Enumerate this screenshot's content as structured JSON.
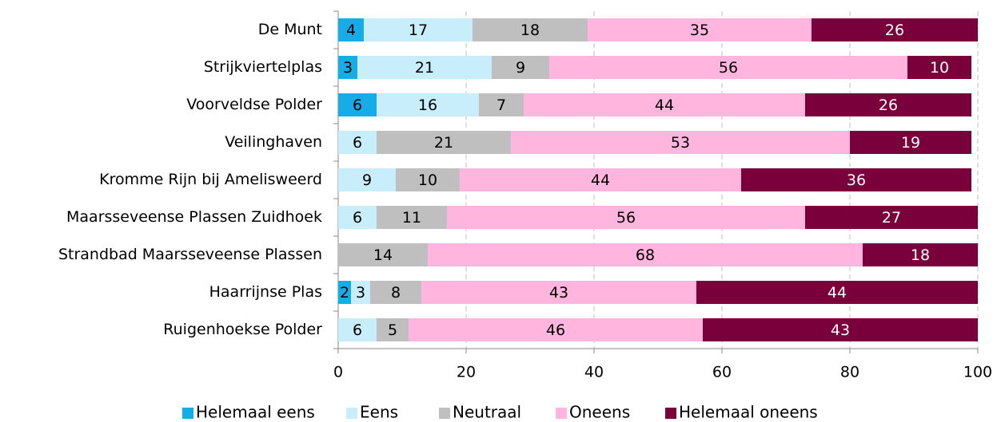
{
  "chart_data": {
    "type": "stacked-barh",
    "categories": [
      "De Munt",
      "Strijkviertelplas",
      "Voorveldse Polder",
      "Veilinghaven",
      "Kromme Rijn bij Amelisweerd",
      "Maarsseveense Plassen Zuidhoek",
      "Strandbad Maarsseveense Plassen",
      "Haarrijnse Plas",
      "Ruigenhoekse Polder"
    ],
    "series": [
      {
        "name": "Helemaal eens",
        "color": "#16ace8",
        "label_color": "#000000",
        "values": [
          4,
          3,
          6,
          null,
          null,
          null,
          null,
          2,
          null
        ]
      },
      {
        "name": "Eens",
        "color": "#c8eefb",
        "label_color": "#000000",
        "values": [
          17,
          21,
          16,
          6,
          9,
          6,
          null,
          3,
          6
        ]
      },
      {
        "name": "Neutraal",
        "color": "#bfbfbf",
        "label_color": "#000000",
        "values": [
          18,
          9,
          7,
          21,
          10,
          11,
          14,
          8,
          5
        ]
      },
      {
        "name": "Oneens",
        "color": "#ffb5dd",
        "label_color": "#000000",
        "values": [
          35,
          56,
          44,
          53,
          44,
          56,
          68,
          43,
          46
        ]
      },
      {
        "name": "Helemaal oneens",
        "color": "#7a003c",
        "label_color": "#ffffff",
        "values": [
          26,
          10,
          26,
          19,
          36,
          27,
          18,
          44,
          43
        ]
      }
    ],
    "xlim": [
      0,
      100
    ],
    "xticks": [
      0,
      20,
      40,
      60,
      80,
      100
    ],
    "grid": true,
    "legend": "bottom"
  }
}
